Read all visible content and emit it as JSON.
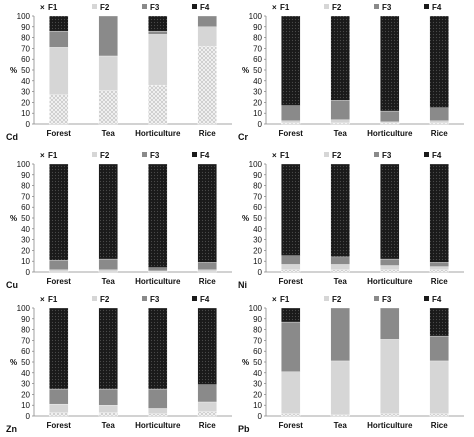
{
  "colors": {
    "F1": "#ebebeb",
    "F2": "#d6d6d6",
    "F3": "#8a8a8a",
    "F4": "#1f1f1f"
  },
  "legend_markers": {
    "F1": "×",
    "F2": "■",
    "F3": "■",
    "F4": "■"
  },
  "chart_data": [
    {
      "type": "bar",
      "stacked": true,
      "element": "Cd",
      "ylabel": "%",
      "ylim": [
        0,
        100
      ],
      "yticks": [
        0,
        10,
        20,
        30,
        40,
        50,
        60,
        70,
        80,
        90,
        100
      ],
      "categories": [
        "Forest",
        "Tea",
        "Horticulture",
        "Rice"
      ],
      "series": [
        {
          "name": "F1",
          "values": [
            27,
            31,
            36,
            72
          ]
        },
        {
          "name": "F2",
          "values": [
            44,
            32,
            47,
            18
          ]
        },
        {
          "name": "F3",
          "values": [
            15,
            37,
            3,
            10
          ]
        },
        {
          "name": "F4",
          "values": [
            14,
            0,
            14,
            0
          ]
        }
      ]
    },
    {
      "type": "bar",
      "stacked": true,
      "element": "Cr",
      "ylabel": "%",
      "ylim": [
        0,
        100
      ],
      "yticks": [
        0,
        10,
        20,
        30,
        40,
        50,
        60,
        70,
        80,
        90,
        100
      ],
      "categories": [
        "Forest",
        "Tea",
        "Horticulture",
        "Rice"
      ],
      "series": [
        {
          "name": "F1",
          "values": [
            1,
            1,
            1,
            1
          ]
        },
        {
          "name": "F2",
          "values": [
            2,
            3,
            1,
            2
          ]
        },
        {
          "name": "F3",
          "values": [
            14,
            18,
            10,
            12
          ]
        },
        {
          "name": "F4",
          "values": [
            83,
            78,
            88,
            85
          ]
        }
      ]
    },
    {
      "type": "bar",
      "stacked": true,
      "element": "Cu",
      "ylabel": "%",
      "ylim": [
        0,
        100
      ],
      "yticks": [
        0,
        10,
        20,
        30,
        40,
        50,
        60,
        70,
        80,
        90,
        100
      ],
      "categories": [
        "Forest",
        "Tea",
        "Horticulture",
        "Rice"
      ],
      "series": [
        {
          "name": "F1",
          "values": [
            0,
            0,
            0,
            0
          ]
        },
        {
          "name": "F2",
          "values": [
            2,
            2,
            1,
            2
          ]
        },
        {
          "name": "F3",
          "values": [
            9,
            10,
            3,
            7
          ]
        },
        {
          "name": "F4",
          "values": [
            89,
            88,
            96,
            91
          ]
        }
      ]
    },
    {
      "type": "bar",
      "stacked": true,
      "element": "Ni",
      "ylabel": "%",
      "ylim": [
        0,
        100
      ],
      "yticks": [
        0,
        10,
        20,
        30,
        40,
        50,
        60,
        70,
        80,
        90,
        100
      ],
      "categories": [
        "Forest",
        "Tea",
        "Horticulture",
        "Rice"
      ],
      "series": [
        {
          "name": "F1",
          "values": [
            2,
            2,
            2,
            2
          ]
        },
        {
          "name": "F2",
          "values": [
            5,
            5,
            4,
            3
          ]
        },
        {
          "name": "F3",
          "values": [
            8,
            7,
            6,
            4
          ]
        },
        {
          "name": "F4",
          "values": [
            85,
            86,
            88,
            91
          ]
        }
      ]
    },
    {
      "type": "bar",
      "stacked": true,
      "element": "Zn",
      "ylabel": "%",
      "ylim": [
        0,
        100
      ],
      "yticks": [
        0,
        10,
        20,
        30,
        40,
        50,
        60,
        70,
        80,
        90,
        100
      ],
      "categories": [
        "Forest",
        "Tea",
        "Horticulture",
        "Rice"
      ],
      "series": [
        {
          "name": "F1",
          "values": [
            3,
            3,
            2,
            4
          ]
        },
        {
          "name": "F2",
          "values": [
            8,
            7,
            5,
            9
          ]
        },
        {
          "name": "F3",
          "values": [
            14,
            15,
            18,
            16
          ]
        },
        {
          "name": "F4",
          "values": [
            75,
            75,
            75,
            71
          ]
        }
      ]
    },
    {
      "type": "bar",
      "stacked": true,
      "element": "Pb",
      "ylabel": "%",
      "ylim": [
        0,
        100
      ],
      "yticks": [
        0,
        10,
        20,
        30,
        40,
        50,
        60,
        70,
        80,
        90,
        100
      ],
      "categories": [
        "Forest",
        "Tea",
        "Horticulture",
        "Rice"
      ],
      "series": [
        {
          "name": "F1",
          "values": [
            2,
            1,
            2,
            2
          ]
        },
        {
          "name": "F2",
          "values": [
            39,
            50,
            69,
            49
          ]
        },
        {
          "name": "F3",
          "values": [
            46,
            49,
            29,
            23
          ]
        },
        {
          "name": "F4",
          "values": [
            13,
            0,
            0,
            26
          ]
        }
      ]
    }
  ]
}
